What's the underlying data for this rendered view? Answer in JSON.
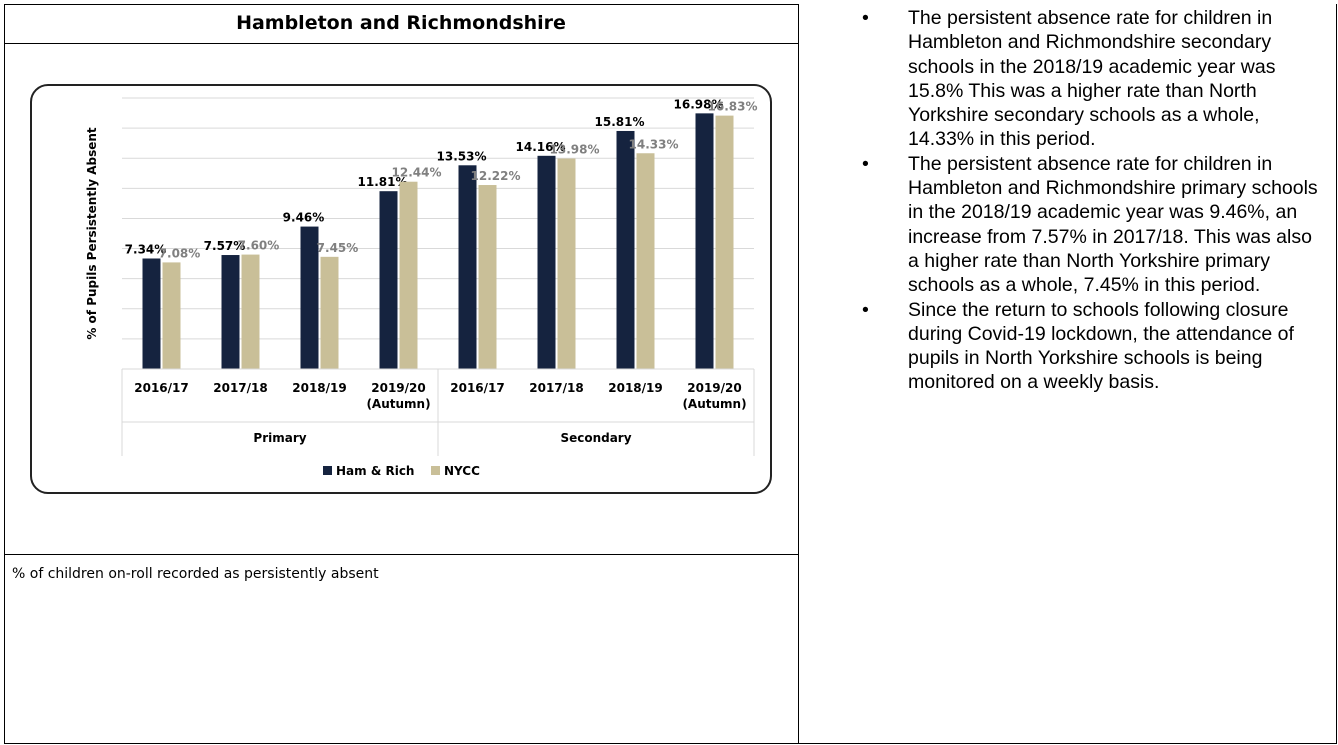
{
  "heading": "Hambleton and Richmondshire",
  "caption": "% of children on-roll recorded as persistently absent",
  "notes": [
    "The persistent absence rate for children in Hambleton and Richmondshire secondary schools in the 2018/19 academic year was 15.8% This was a higher rate than North Yorkshire secondary schools as a whole, 14.33% in this period.",
    "The persistent absence rate for children in Hambleton and Richmondshire primary schools in the 2018/19 academic year was 9.46%, an increase from 7.57% in 2017/18. This was also a higher rate than North Yorkshire primary schools as a whole, 7.45% in this period.",
    "Since the return to schools following closure during Covid-19 lockdown, the attendance of pupils in North Yorkshire schools is being monitored on a weekly basis."
  ],
  "bullet_glyph": "•",
  "chart_data": {
    "type": "bar",
    "title": "",
    "xlabel": "",
    "ylabel": "% of Pupils Persistently Absent",
    "ylim": [
      0,
      18
    ],
    "grid": true,
    "legend_position": "bottom-center",
    "categories": [
      "2016/17",
      "2017/18",
      "2018/19",
      "2019/20\n(Autumn)",
      "2016/17",
      "2017/18",
      "2018/19",
      "2019/20\n(Autumn)"
    ],
    "groups": [
      {
        "label": "Primary",
        "count": 4
      },
      {
        "label": "Secondary",
        "count": 4
      }
    ],
    "series": [
      {
        "name": "Ham & Rich",
        "color": "#15233f",
        "values": [
          7.34,
          7.57,
          9.46,
          11.81,
          13.53,
          14.16,
          15.81,
          16.98
        ],
        "labels": [
          "7.34%",
          "7.57%",
          "9.46%",
          "11.81%",
          "13.53%",
          "14.16%",
          "15.81%",
          "16.98%"
        ]
      },
      {
        "name": "NYCC",
        "color": "#c9bf98",
        "values": [
          7.08,
          7.6,
          7.45,
          12.44,
          12.22,
          13.98,
          14.33,
          16.83
        ],
        "labels": [
          "7.08%",
          "7.60%",
          "7.45%",
          "12.44%",
          "12.22%",
          "13.98%",
          "14.33%",
          "16.83%"
        ]
      }
    ]
  }
}
